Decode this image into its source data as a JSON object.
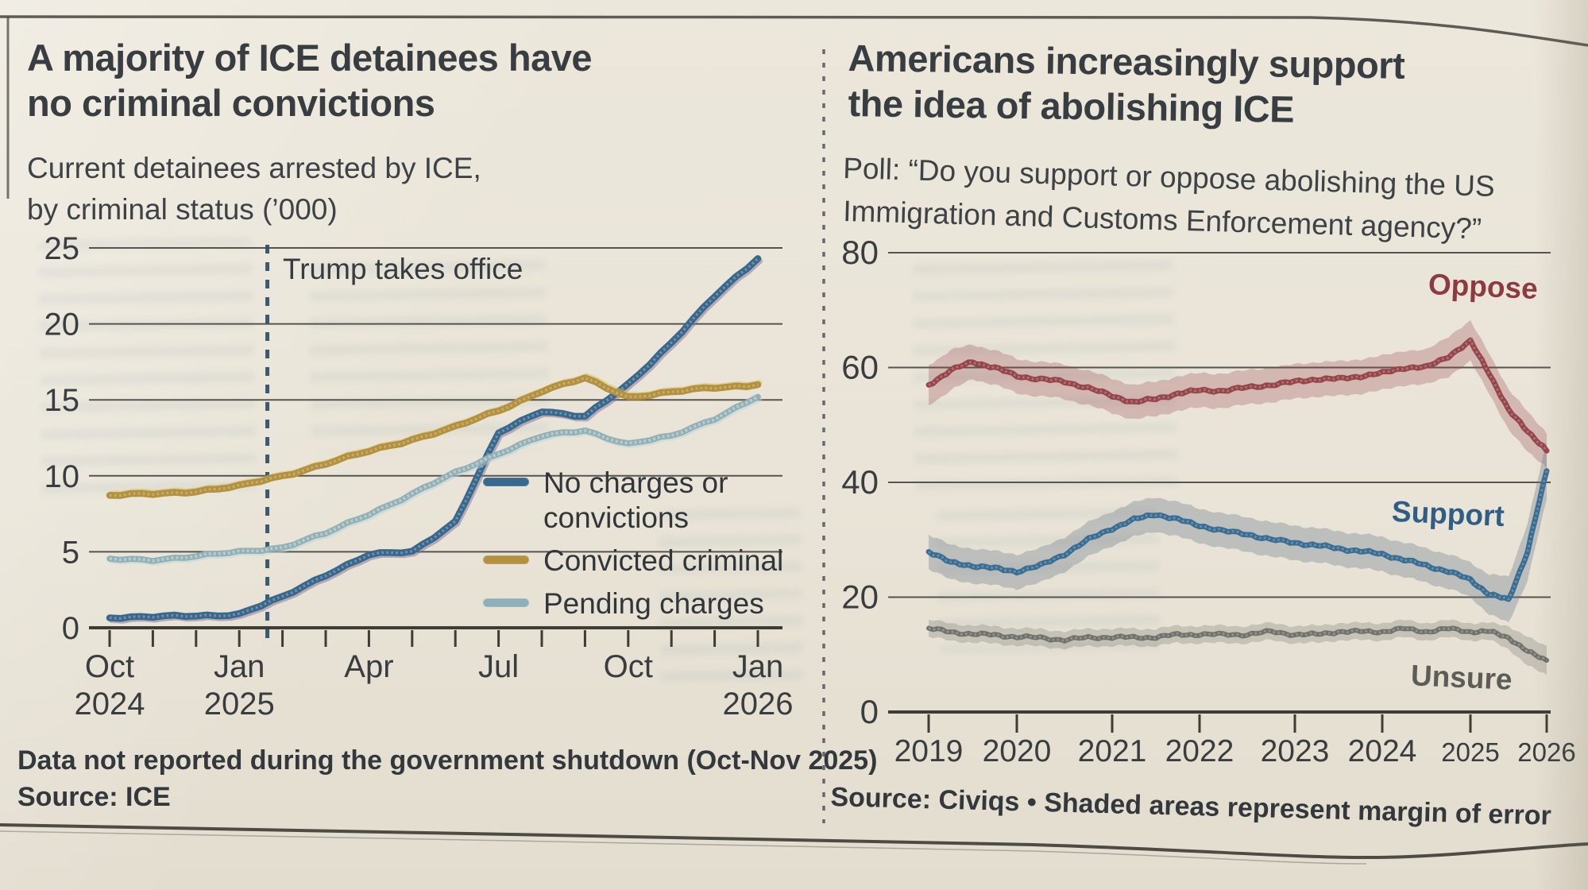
{
  "paper": {
    "bg": "#e9e4d8",
    "ink": "#33383c",
    "rule_color": "#4e4b45"
  },
  "left": {
    "title_line1": "A majority of ICE detainees have",
    "title_line2": "no criminal convictions",
    "subtitle_line1": "Current detainees arrested by ICE,",
    "subtitle_line2": "by criminal status (’000)",
    "annotation": "Trump takes office",
    "legend": [
      {
        "label": "No charges or convictions",
        "color": "#38688e"
      },
      {
        "label": "Convicted criminal",
        "color": "#b3913f"
      },
      {
        "label": "Pending charges",
        "color": "#8fb0b8"
      }
    ],
    "footnote": "Data not reported during the government shutdown (Oct-Nov 2025)",
    "source": "Source: ICE"
  },
  "right": {
    "title_line1": "Americans increasingly support",
    "title_line2": "the idea of abolishing ICE",
    "subtitle_line1": "Poll: “Do you support or oppose abolishing the US",
    "subtitle_line2": "Immigration and Customs Enforcement agency?”",
    "label_oppose": "Oppose",
    "label_support": "Support",
    "label_unsure": "Unsure",
    "source": "Source: Civiqs • Shaded areas represent margin of error"
  },
  "chart_data": [
    {
      "id": "ice-detainees",
      "type": "line",
      "title": "A majority of ICE detainees have no criminal convictions",
      "subtitle": "Current detainees arrested by ICE, by criminal status (’000)",
      "ylabel": "thousands of detainees",
      "ylim": [
        0,
        25
      ],
      "yticks": [
        0,
        5,
        10,
        15,
        20,
        25
      ],
      "grid": true,
      "x_months": [
        "Oct 2024",
        "Nov 2024",
        "Dec 2024",
        "Jan 2025",
        "Feb 2025",
        "Mar 2025",
        "Apr 2025",
        "May 2025",
        "Jun 2025",
        "Jul 2025",
        "Aug 2025",
        "Sep 2025",
        "Oct 2025",
        "Nov 2025",
        "Dec 2025",
        "Jan 2026"
      ],
      "xticks": [
        {
          "month_index": 0,
          "label": [
            "Oct",
            "2024"
          ]
        },
        {
          "month_index": 3,
          "label": [
            "Jan",
            "2025"
          ]
        },
        {
          "month_index": 6,
          "label": [
            "Apr"
          ]
        },
        {
          "month_index": 9,
          "label": [
            "Jul"
          ]
        },
        {
          "month_index": 12,
          "label": [
            "Oct"
          ]
        },
        {
          "month_index": 15,
          "label": [
            "Jan",
            "2026"
          ]
        }
      ],
      "annotation": {
        "label": "Trump takes office",
        "month_index": 3.65
      },
      "series": [
        {
          "name": "No charges or convictions",
          "color": "#38688e",
          "shadow": "#866d92",
          "values": [
            0.7,
            0.7,
            0.8,
            0.9,
            2.0,
            3.5,
            4.8,
            5.0,
            7.0,
            12.8,
            14.3,
            13.9,
            16.0,
            18.8,
            21.8,
            24.3
          ]
        },
        {
          "name": "Convicted criminal",
          "color": "#b3913f",
          "shadow": "#d9c050",
          "values": [
            8.7,
            8.8,
            9.0,
            9.3,
            10.0,
            10.8,
            11.6,
            12.4,
            13.2,
            14.3,
            15.6,
            16.4,
            15.2,
            15.5,
            15.8,
            16.0
          ]
        },
        {
          "name": "Pending charges",
          "color": "#8fb0b8",
          "shadow": "#bad3d7",
          "values": [
            4.5,
            4.5,
            4.7,
            5.0,
            5.3,
            6.2,
            7.5,
            8.8,
            10.2,
            11.5,
            12.6,
            13.0,
            12.1,
            12.6,
            13.8,
            15.2
          ]
        }
      ],
      "footnote": "Data not reported during the government shutdown (Oct-Nov 2025)",
      "source": "ICE"
    },
    {
      "id": "abolish-ice-poll",
      "type": "line",
      "title": "Americans increasingly support the idea of abolishing ICE",
      "subtitle": "Poll: “Do you support or oppose abolishing the US Immigration and Customs Enforcement agency?”",
      "ylim": [
        0,
        80
      ],
      "yticks": [
        0,
        20,
        40,
        60,
        80
      ],
      "grid": true,
      "years": [
        "2019",
        "2020",
        "2021",
        "2022",
        "2023",
        "2024",
        "2025",
        "2026"
      ],
      "x": [
        2019,
        2019.25,
        2019.5,
        2019.75,
        2020,
        2020.25,
        2020.5,
        2020.75,
        2021,
        2021.25,
        2021.5,
        2021.75,
        2022,
        2022.25,
        2022.5,
        2022.75,
        2023,
        2023.25,
        2023.5,
        2023.75,
        2024,
        2024.25,
        2024.5,
        2024.75,
        2025,
        2025.25,
        2025.5,
        2025.75,
        2026
      ],
      "series": [
        {
          "name": "Oppose",
          "color": "#97454c",
          "band": "rgba(151,69,76,0.28)",
          "values": [
            57,
            59.5,
            61,
            60,
            58.5,
            58,
            57.5,
            56.5,
            55,
            54,
            54.5,
            55.5,
            56,
            56,
            56.5,
            57,
            57.5,
            58,
            58,
            58.5,
            59,
            60,
            60,
            62,
            64.5,
            59,
            52.5,
            49,
            45.5
          ],
          "moe": [
            3.5,
            3.5,
            3,
            3,
            3,
            3,
            3,
            3,
            3,
            3,
            3,
            3,
            3,
            3,
            3,
            3,
            3,
            3,
            3,
            3,
            3,
            3,
            3,
            3.5,
            3.5,
            3.5,
            3.5,
            3.5,
            3
          ]
        },
        {
          "name": "Support",
          "color": "#3a6d94",
          "band": "rgba(110,122,140,0.35)",
          "values": [
            28,
            26,
            25.5,
            25,
            24.5,
            25.5,
            27.5,
            30,
            32,
            33.5,
            34.5,
            33.5,
            32.5,
            31.5,
            31,
            30,
            29.5,
            29,
            28.5,
            28,
            27.5,
            26.5,
            25.5,
            24.5,
            23,
            20.5,
            19.5,
            28,
            42
          ],
          "moe": [
            3,
            3,
            3,
            3,
            3,
            3,
            3,
            3,
            3,
            3,
            3,
            3,
            3,
            3,
            3,
            3,
            3,
            3,
            3,
            3,
            3,
            3,
            3,
            3,
            3,
            3.5,
            4,
            5,
            5
          ]
        },
        {
          "name": "Unsure",
          "color": "#71716d",
          "band": "rgba(110,110,105,0.28)",
          "values": [
            14.5,
            14,
            13.5,
            13.5,
            13,
            13,
            12.5,
            13,
            13,
            13,
            13,
            13.5,
            13.5,
            13.5,
            13.5,
            14,
            13.5,
            13.5,
            14,
            14,
            14,
            14.5,
            14,
            14.5,
            14,
            14,
            13,
            10.5,
            9
          ],
          "moe": [
            1.5,
            1.5,
            1.5,
            1.5,
            1.5,
            1.5,
            1.5,
            1.5,
            1.5,
            1.5,
            1.5,
            1.5,
            1.5,
            1.5,
            1.5,
            1.5,
            1.5,
            1.5,
            1.5,
            1.5,
            1.5,
            1.5,
            1.5,
            1.5,
            1.5,
            1.5,
            2,
            2.5,
            2.5
          ]
        }
      ],
      "legend_position": "inline-labels",
      "source": "Civiqs",
      "note": "Shaded areas represent margin of error"
    }
  ]
}
